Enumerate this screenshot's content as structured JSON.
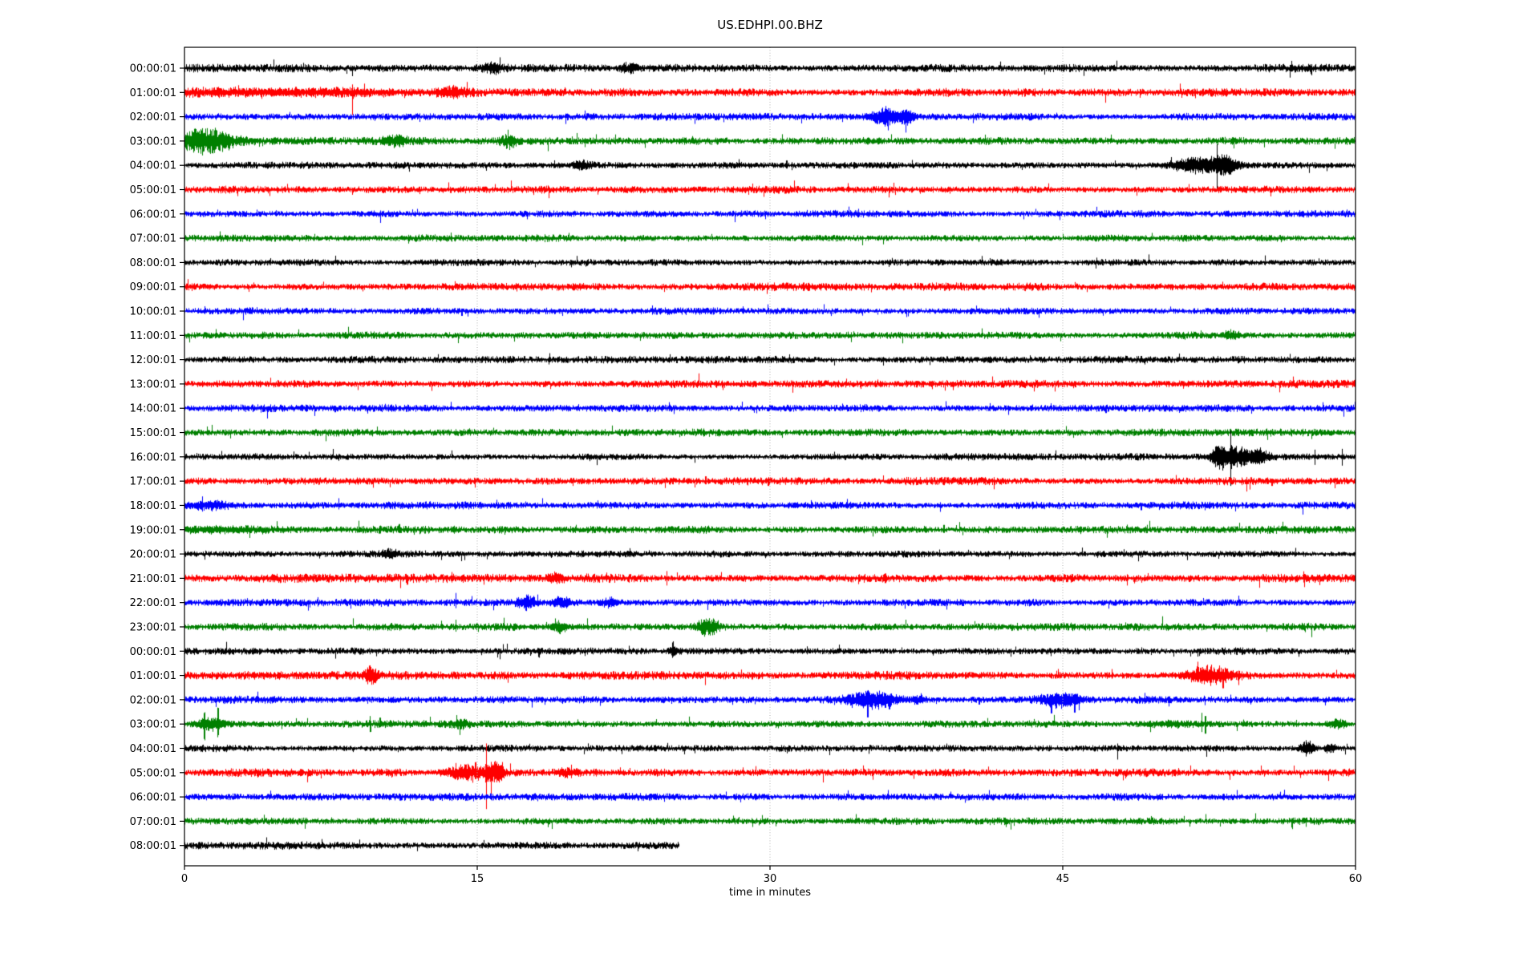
{
  "title": "US.EDHPI.00.BHZ",
  "chart_data": {
    "type": "line",
    "kind": "seismogram_dayplot",
    "station_id": "US.EDHPI.00.BHZ",
    "xlabel": "time in minutes",
    "xlim": [
      0,
      60
    ],
    "x_ticks": [
      0,
      15,
      30,
      45,
      60
    ],
    "grid_x": [
      15,
      30,
      45
    ],
    "grid_on": true,
    "grid_color": "#b0b0b0",
    "background": "#ffffff",
    "axis_color": "#000000",
    "trace_colors": [
      "#000000",
      "#ff0000",
      "#0000ff",
      "#008000"
    ],
    "rows": [
      {
        "label": "00:00:01",
        "amp": 3.2,
        "events": [
          {
            "t": 8.6,
            "up": 3,
            "dn": 10
          },
          {
            "t": 15.7,
            "w": 0.4,
            "amp": 4
          },
          {
            "t": 22.7,
            "w": 0.3,
            "amp": 4
          }
        ]
      },
      {
        "label": "01:00:01",
        "amp": 3.2,
        "events": [
          {
            "t": 4.5,
            "w": 4.5,
            "amp": 2.5
          },
          {
            "t": 2.75,
            "up": 9,
            "dn": 5
          },
          {
            "t": 3.95,
            "up": 5,
            "dn": 8
          },
          {
            "t": 5.7,
            "up": 7,
            "dn": 5
          },
          {
            "t": 8.6,
            "up": 10,
            "dn": 28
          },
          {
            "t": 9.2,
            "up": 11,
            "dn": 6
          },
          {
            "t": 13.7,
            "w": 0.5,
            "amp": 4
          }
        ]
      },
      {
        "label": "02:00:01",
        "amp": 2.8,
        "events": [
          {
            "t": 35.9,
            "w": 0.5,
            "amp": 8
          },
          {
            "t": 36.05,
            "up": 6,
            "dn": 17
          },
          {
            "t": 36.95,
            "up": 6,
            "dn": 16
          },
          {
            "t": 37.0,
            "w": 0.3,
            "amp": 6
          },
          {
            "t": 40.4,
            "up": 3,
            "dn": 8
          }
        ]
      },
      {
        "label": "03:00:01",
        "amp": 3.0,
        "events": [
          {
            "t": 1.0,
            "w": 1.1,
            "amp": 12
          },
          {
            "t": 0.9,
            "up": 16,
            "dn": 18
          },
          {
            "t": 1.6,
            "up": 14,
            "dn": 10
          },
          {
            "t": 10.8,
            "w": 0.4,
            "amp": 4
          },
          {
            "t": 16.6,
            "w": 0.25,
            "amp": 6
          }
        ]
      },
      {
        "label": "04:00:01",
        "amp": 2.6,
        "events": [
          {
            "t": 20.4,
            "w": 0.3,
            "amp": 4
          },
          {
            "t": 30.85,
            "up": 6,
            "dn": 4
          },
          {
            "t": 31.1,
            "up": 4,
            "dn": 6
          },
          {
            "t": 52.0,
            "w": 1.0,
            "amp": 7
          },
          {
            "t": 51.3,
            "up": 7,
            "dn": 7
          },
          {
            "t": 52.9,
            "up": 22,
            "dn": 24
          },
          {
            "t": 53.3,
            "w": 0.4,
            "amp": 8
          }
        ]
      },
      {
        "label": "05:00:01",
        "amp": 3.0,
        "events": []
      },
      {
        "label": "06:00:01",
        "amp": 2.8,
        "events": []
      },
      {
        "label": "07:00:01",
        "amp": 2.8,
        "events": []
      },
      {
        "label": "08:00:01",
        "amp": 2.6,
        "events": [
          {
            "t": 19.8,
            "up": 3,
            "dn": 6
          }
        ]
      },
      {
        "label": "09:00:01",
        "amp": 3.2,
        "events": []
      },
      {
        "label": "10:00:01",
        "amp": 2.8,
        "events": [
          {
            "t": 14.2,
            "up": 3,
            "dn": 6
          }
        ]
      },
      {
        "label": "11:00:01",
        "amp": 2.9,
        "events": [
          {
            "t": 53.6,
            "w": 0.3,
            "amp": 4
          }
        ]
      },
      {
        "label": "12:00:01",
        "amp": 2.8,
        "events": []
      },
      {
        "label": "13:00:01",
        "amp": 3.2,
        "events": []
      },
      {
        "label": "14:00:01",
        "amp": 2.8,
        "events": [
          {
            "t": 7.7,
            "up": 3,
            "dn": 5
          },
          {
            "t": 47.2,
            "up": 3,
            "dn": 6
          }
        ]
      },
      {
        "label": "15:00:01",
        "amp": 3.0,
        "events": []
      },
      {
        "label": "16:00:01",
        "amp": 2.7,
        "events": [
          {
            "t": 53.0,
            "w": 0.25,
            "amp": 9
          },
          {
            "t": 53.6,
            "up": 26,
            "dn": 30
          },
          {
            "t": 53.9,
            "w": 0.7,
            "amp": 9
          },
          {
            "t": 54.4,
            "up": 8,
            "dn": 10
          },
          {
            "t": 55.1,
            "w": 0.3,
            "amp": 5
          },
          {
            "t": 57.9,
            "up": 9,
            "dn": 10
          },
          {
            "t": 59.3,
            "up": 10,
            "dn": 11
          }
        ]
      },
      {
        "label": "17:00:01",
        "amp": 3.0,
        "events": [
          {
            "t": 19.9,
            "up": 3,
            "dn": 6
          },
          {
            "t": 26.7,
            "up": 6,
            "dn": 4
          },
          {
            "t": 29.9,
            "up": 3,
            "dn": 6
          },
          {
            "t": 38.9,
            "up": 3,
            "dn": 5
          },
          {
            "t": 54.4,
            "up": 5,
            "dn": 13
          },
          {
            "t": 55.7,
            "up": 3,
            "dn": 6
          }
        ]
      },
      {
        "label": "18:00:01",
        "amp": 2.9,
        "events": [
          {
            "t": 0.9,
            "up": 10,
            "dn": 6
          },
          {
            "t": 1.2,
            "w": 0.8,
            "amp": 3
          },
          {
            "t": 7.9,
            "up": 9,
            "dn": 5
          },
          {
            "t": 38.7,
            "up": 4,
            "dn": 8
          },
          {
            "t": 49.0,
            "up": 3,
            "dn": 6
          }
        ]
      },
      {
        "label": "19:00:01",
        "amp": 3.0,
        "events": [
          {
            "t": 1.5,
            "w": 2.2,
            "amp": 2
          },
          {
            "t": 11.0,
            "up": 7,
            "dn": 4
          },
          {
            "t": 13.8,
            "up": 5,
            "dn": 5
          },
          {
            "t": 38.9,
            "up": 6,
            "dn": 4
          },
          {
            "t": 42.9,
            "up": 4,
            "dn": 4
          }
        ]
      },
      {
        "label": "20:00:01",
        "amp": 2.6,
        "events": [
          {
            "t": 10.5,
            "w": 0.25,
            "amp": 4
          }
        ]
      },
      {
        "label": "21:00:01",
        "amp": 3.4,
        "events": [
          {
            "t": 11.4,
            "up": 4,
            "dn": 8
          },
          {
            "t": 19.0,
            "w": 0.3,
            "amp": 3
          },
          {
            "t": 24.7,
            "up": 9,
            "dn": 9
          },
          {
            "t": 35.9,
            "up": 6,
            "dn": 6
          },
          {
            "t": 48.3,
            "up": 5,
            "dn": 9
          }
        ]
      },
      {
        "label": "22:00:01",
        "amp": 2.9,
        "events": [
          {
            "t": 13.9,
            "up": 12,
            "dn": 7
          },
          {
            "t": 17.5,
            "w": 0.3,
            "amp": 7
          },
          {
            "t": 19.3,
            "w": 0.3,
            "amp": 5
          },
          {
            "t": 21.8,
            "w": 0.3,
            "amp": 4
          }
        ]
      },
      {
        "label": "23:00:01",
        "amp": 3.0,
        "events": [
          {
            "t": 13.9,
            "up": 9,
            "dn": 6
          },
          {
            "t": 19.2,
            "w": 0.25,
            "amp": 5
          },
          {
            "t": 26.8,
            "w": 0.35,
            "amp": 8
          }
        ]
      },
      {
        "label": "00:00:01",
        "amp": 2.8,
        "events": [
          {
            "t": 15.2,
            "up": 3,
            "dn": 5
          },
          {
            "t": 20.5,
            "up": 3,
            "dn": 6
          },
          {
            "t": 25.0,
            "up": 9,
            "dn": 5
          },
          {
            "t": 25.1,
            "w": 0.2,
            "amp": 4
          },
          {
            "t": 31.9,
            "up": 6,
            "dn": 4
          }
        ]
      },
      {
        "label": "01:00:01",
        "amp": 3.2,
        "events": [
          {
            "t": 9.5,
            "w": 0.25,
            "amp": 7
          },
          {
            "t": 51.9,
            "up": 12,
            "dn": 6
          },
          {
            "t": 52.5,
            "w": 0.8,
            "amp": 8
          },
          {
            "t": 53.2,
            "up": 8,
            "dn": 16
          },
          {
            "t": 54.0,
            "up": 6,
            "dn": 12
          }
        ]
      },
      {
        "label": "02:00:01",
        "amp": 2.9,
        "events": [
          {
            "t": 35.2,
            "w": 0.8,
            "amp": 8
          },
          {
            "t": 35.0,
            "up": 6,
            "dn": 22
          },
          {
            "t": 35.9,
            "up": 8,
            "dn": 10
          },
          {
            "t": 36.1,
            "up": 5,
            "dn": 12
          },
          {
            "t": 37.6,
            "w": 0.2,
            "amp": 4
          },
          {
            "t": 40.7,
            "up": 3,
            "dn": 6
          },
          {
            "t": 44.8,
            "w": 0.7,
            "amp": 7
          },
          {
            "t": 44.4,
            "up": 6,
            "dn": 17
          },
          {
            "t": 45.6,
            "up": 7,
            "dn": 16
          }
        ]
      },
      {
        "label": "03:00:01",
        "amp": 2.9,
        "events": [
          {
            "t": 1.0,
            "up": 12,
            "dn": 16
          },
          {
            "t": 1.7,
            "up": 16,
            "dn": 12
          },
          {
            "t": 1.3,
            "w": 0.5,
            "amp": 6
          },
          {
            "t": 9.5,
            "up": 10,
            "dn": 10
          },
          {
            "t": 10.0,
            "up": 8,
            "dn": 4
          },
          {
            "t": 14.2,
            "w": 0.3,
            "amp": 3
          },
          {
            "t": 50.5,
            "w": 1.0,
            "amp": 2
          },
          {
            "t": 52.1,
            "up": 14,
            "dn": 10
          },
          {
            "t": 52.3,
            "up": 10,
            "dn": 12
          },
          {
            "t": 59.0,
            "w": 0.3,
            "amp": 4
          }
        ]
      },
      {
        "label": "04:00:01",
        "amp": 2.7,
        "events": [
          {
            "t": 47.8,
            "up": 6,
            "dn": 14
          },
          {
            "t": 57.5,
            "w": 0.25,
            "amp": 8
          },
          {
            "t": 58.7,
            "w": 0.2,
            "amp": 4
          }
        ]
      },
      {
        "label": "05:00:01",
        "amp": 3.1,
        "events": [
          {
            "t": 14.5,
            "w": 0.8,
            "amp": 7
          },
          {
            "t": 13.9,
            "up": 12,
            "dn": 8
          },
          {
            "t": 14.4,
            "up": 10,
            "dn": 6
          },
          {
            "t": 14.9,
            "up": 13,
            "dn": 8
          },
          {
            "t": 15.45,
            "up": 34,
            "dn": 44
          },
          {
            "t": 15.7,
            "up": 10,
            "dn": 24
          },
          {
            "t": 15.9,
            "w": 0.3,
            "amp": 10
          },
          {
            "t": 19.5,
            "w": 0.3,
            "amp": 3
          }
        ]
      },
      {
        "label": "06:00:01",
        "amp": 2.9,
        "events": []
      },
      {
        "label": "07:00:01",
        "amp": 2.8,
        "events": []
      },
      {
        "label": "08:00:01",
        "amp": 3.0,
        "end_min": 25.3,
        "events": []
      }
    ]
  }
}
